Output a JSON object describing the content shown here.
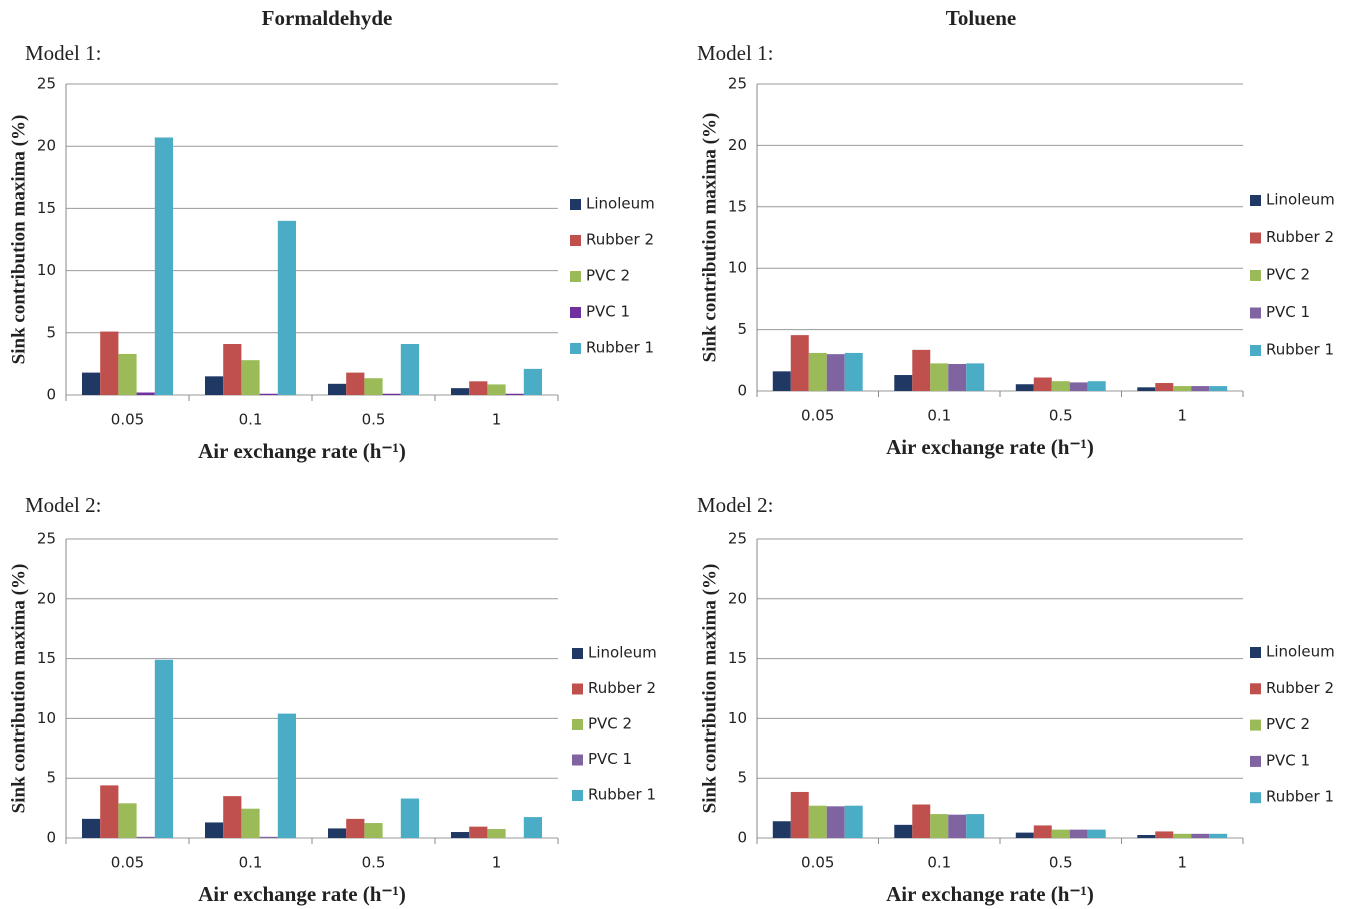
{
  "column_titles": [
    "Formaldehyde",
    "Toluene"
  ],
  "chart_data": [
    {
      "type": "bar",
      "subtitle": "Model 1:",
      "xlabel": "Air exchange rate (h⁻¹)",
      "ylabel": "Sink contribution maxima (%)",
      "categories": [
        "0.05",
        "0.1",
        "0.5",
        "1"
      ],
      "ylim": [
        0,
        25
      ],
      "yticks": [
        0,
        5,
        10,
        15,
        20,
        25
      ],
      "grid": true,
      "series": [
        {
          "name": "Linoleum",
          "color": "#1f3864",
          "values": [
            1.8,
            1.5,
            0.9,
            0.55
          ]
        },
        {
          "name": "Rubber 2",
          "color": "#c0504d",
          "values": [
            5.1,
            4.1,
            1.8,
            1.1
          ]
        },
        {
          "name": "PVC 2",
          "color": "#9bbb59",
          "values": [
            3.3,
            2.8,
            1.35,
            0.85
          ]
        },
        {
          "name": "PVC 1",
          "color": "#7030a0",
          "values": [
            0.2,
            0.1,
            0.1,
            0.1
          ]
        },
        {
          "name": "Rubber 1",
          "color": "#4bacc6",
          "values": [
            20.7,
            14.0,
            4.1,
            2.1
          ]
        }
      ]
    },
    {
      "type": "bar",
      "subtitle": "Model 1:",
      "xlabel": "Air exchange rate (h⁻¹)",
      "ylabel": "Sink contribution maxima (%)",
      "categories": [
        "0.05",
        "0.1",
        "0.5",
        "1"
      ],
      "ylim": [
        0,
        25
      ],
      "yticks": [
        0,
        5,
        10,
        15,
        20,
        25
      ],
      "grid": true,
      "series": [
        {
          "name": "Linoleum",
          "color": "#1f3864",
          "values": [
            1.6,
            1.3,
            0.55,
            0.3
          ]
        },
        {
          "name": "Rubber 2",
          "color": "#c0504d",
          "values": [
            4.55,
            3.35,
            1.1,
            0.65
          ]
        },
        {
          "name": "PVC 2",
          "color": "#9bbb59",
          "values": [
            3.1,
            2.25,
            0.8,
            0.4
          ]
        },
        {
          "name": "PVC 1",
          "color": "#8064a2",
          "values": [
            3.0,
            2.2,
            0.7,
            0.4
          ]
        },
        {
          "name": "Rubber 1",
          "color": "#4bacc6",
          "values": [
            3.1,
            2.25,
            0.8,
            0.4
          ]
        }
      ]
    },
    {
      "type": "bar",
      "subtitle": "Model 2:",
      "xlabel": "Air exchange rate (h⁻¹)",
      "ylabel": "Sink contribution maxima (%)",
      "categories": [
        "0.05",
        "0.1",
        "0.5",
        "1"
      ],
      "ylim": [
        0,
        25
      ],
      "yticks": [
        0,
        5,
        10,
        15,
        20,
        25
      ],
      "grid": true,
      "series": [
        {
          "name": "Linoleum",
          "color": "#1f3864",
          "values": [
            1.6,
            1.3,
            0.8,
            0.5
          ]
        },
        {
          "name": "Rubber 2",
          "color": "#c0504d",
          "values": [
            4.4,
            3.5,
            1.6,
            0.95
          ]
        },
        {
          "name": "PVC 2",
          "color": "#9bbb59",
          "values": [
            2.9,
            2.45,
            1.25,
            0.75
          ]
        },
        {
          "name": "PVC 1",
          "color": "#8064a2",
          "values": [
            0.1,
            0.1,
            0,
            0
          ]
        },
        {
          "name": "Rubber 1",
          "color": "#4bacc6",
          "values": [
            14.9,
            10.4,
            3.3,
            1.75
          ]
        }
      ]
    },
    {
      "type": "bar",
      "subtitle": "Model 2:",
      "xlabel": "Air exchange rate (h⁻¹)",
      "ylabel": "Sink contribution maxima (%)",
      "categories": [
        "0.05",
        "0.1",
        "0.5",
        "1"
      ],
      "ylim": [
        0,
        25
      ],
      "yticks": [
        0,
        5,
        10,
        15,
        20,
        25
      ],
      "grid": true,
      "series": [
        {
          "name": "Linoleum",
          "color": "#1f3864",
          "values": [
            1.4,
            1.1,
            0.45,
            0.25
          ]
        },
        {
          "name": "Rubber 2",
          "color": "#c0504d",
          "values": [
            3.85,
            2.8,
            1.05,
            0.55
          ]
        },
        {
          "name": "PVC 2",
          "color": "#9bbb59",
          "values": [
            2.7,
            2.0,
            0.7,
            0.35
          ]
        },
        {
          "name": "PVC 1",
          "color": "#8064a2",
          "values": [
            2.65,
            1.95,
            0.7,
            0.35
          ]
        },
        {
          "name": "Rubber 1",
          "color": "#4bacc6",
          "values": [
            2.7,
            2.0,
            0.7,
            0.35
          ]
        }
      ]
    }
  ]
}
